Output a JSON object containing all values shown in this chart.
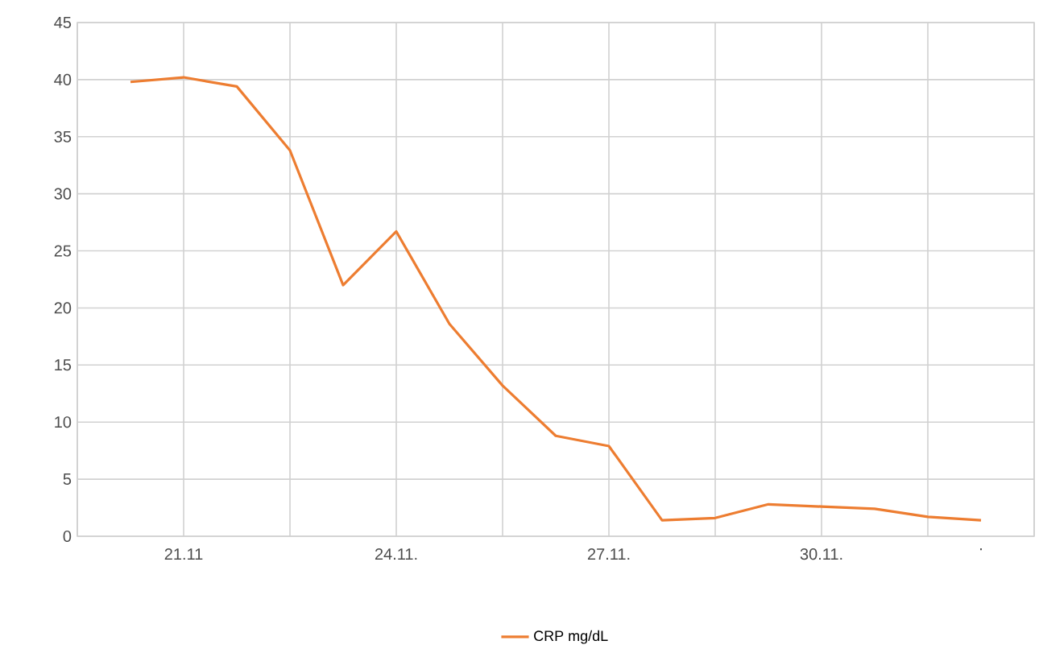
{
  "chart_data": {
    "type": "line",
    "categories": [
      null,
      "21.11",
      null,
      null,
      null,
      "24.11.",
      null,
      null,
      null,
      "27.11.",
      null,
      null,
      null,
      "30.11.",
      null,
      null,
      "."
    ],
    "series": [
      {
        "name": "CRP mg/dL",
        "color": "#ed7d31",
        "values": [
          39.8,
          40.2,
          39.4,
          33.8,
          22.0,
          26.7,
          18.6,
          13.2,
          8.8,
          7.9,
          1.4,
          1.6,
          2.8,
          2.6,
          2.4,
          1.7,
          1.4
        ]
      }
    ],
    "ylim": [
      0,
      45
    ],
    "yticks": [
      0,
      5,
      10,
      15,
      20,
      25,
      30,
      35,
      40,
      45
    ],
    "grid": true,
    "legend": "bottom",
    "marker": "none",
    "line_style": "solid"
  }
}
